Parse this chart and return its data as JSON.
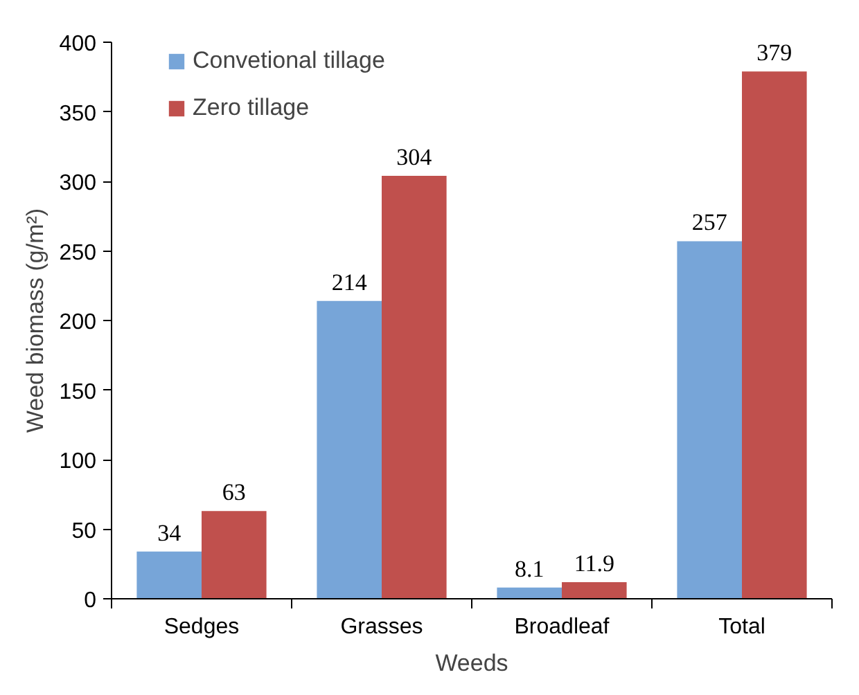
{
  "chart_data": {
    "type": "bar",
    "xlabel": "Weeds",
    "ylabel": "Weed biomass (g/m²)",
    "categories": [
      "Sedges",
      "Grasses",
      "Broadleaf",
      "Total"
    ],
    "series": [
      {
        "name": "Convetional tillage",
        "color": "#77a5d8",
        "values": [
          34,
          214,
          8.1,
          257
        ]
      },
      {
        "name": "Zero tillage",
        "color": "#c0504d",
        "values": [
          63,
          304,
          11.9,
          379
        ]
      }
    ],
    "ylim": [
      0,
      400
    ],
    "yticks": [
      0,
      50,
      100,
      150,
      200,
      250,
      300,
      350,
      400
    ],
    "grid": false,
    "legend": "top left",
    "data_labels": true
  }
}
